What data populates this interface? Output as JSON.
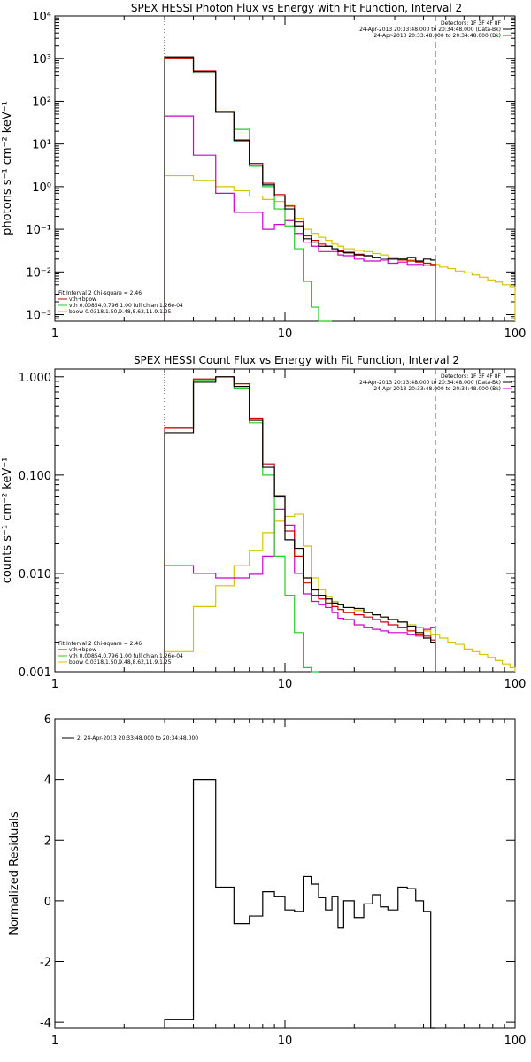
{
  "colors": {
    "data": "#000000",
    "total": "#cc0000",
    "vth": "#22cc22",
    "bpow": "#d4c400",
    "bk": "#cc00cc"
  },
  "chart_data": [
    {
      "type": "line",
      "title": "SPEX HESSI Photon Flux vs Energy with Fit Function, Interval 2",
      "xlabel": "",
      "ylabel": "photons s⁻¹ cm⁻² keV⁻¹",
      "xscale": "log",
      "yscale": "log",
      "xlim": [
        1,
        100
      ],
      "ylim": [
        0.0007,
        10000
      ],
      "xticks": [
        1,
        10,
        100
      ],
      "xtick_labels": [
        "1",
        "10",
        "100"
      ],
      "yticks": [
        0.001,
        0.01,
        0.1,
        1,
        10,
        100,
        1000,
        10000
      ],
      "ytick_labels": [
        "10⁻³",
        "10⁻²",
        "10⁻¹",
        "10⁰",
        "10¹",
        "10²",
        "10³",
        "10⁴"
      ],
      "vlines": [
        3,
        45
      ],
      "legend_top": [
        "Detectors: 1F 3F 4F 8F",
        "24-Apr-2013 20:33:48.000 to 20:34:48.000 (Data-Bk)",
        "24-Apr-2013 20:33:48.000 to 20:34:48.000 (Bk)"
      ],
      "legend_bottom": [
        "Fit Interval 2   Chi-square = 2.46",
        "vth+bpow",
        "vth 0.00854,0.796,1.00   full chian 1.26e-04",
        "bpow 0.0318,1.50,9.48,8.62,11.9,1.25"
      ],
      "bin_edges": [
        3,
        4,
        5,
        6,
        7,
        8,
        9,
        10,
        11,
        12,
        13,
        14,
        15,
        16,
        17,
        18,
        20,
        22,
        24,
        26,
        28,
        31,
        34,
        37,
        40,
        43,
        45
      ],
      "series": [
        {
          "name": "24-Apr-2013 20:33:48.000 to 20:34:48.000 (Data-Bk)",
          "color": "data",
          "values": [
            1100,
            500,
            55,
            12,
            3.2,
            1.1,
            0.6,
            0.3,
            0.12,
            0.06,
            0.05,
            0.04,
            0.04,
            0.035,
            0.03,
            0.028,
            0.025,
            0.024,
            0.022,
            0.021,
            0.02,
            0.02,
            0.022,
            0.018,
            0.02,
            0.019
          ]
        },
        {
          "name": "vth+bpow",
          "color": "total",
          "values": [
            1000,
            520,
            58,
            12.5,
            3.5,
            1.2,
            0.65,
            0.35,
            0.15,
            0.07,
            0.055,
            0.045,
            0.04,
            0.035,
            0.031,
            0.029,
            0.026,
            0.024,
            0.022,
            0.021,
            0.02,
            0.019,
            0.018,
            0.017,
            0.016,
            0.015
          ]
        },
        {
          "name": "vth 0.00854,0.796,1.00   full chian 1.26e-04",
          "color": "vth",
          "values": [
            1100,
            460,
            58,
            22,
            3,
            1.0,
            0.3,
            0.12,
            0.035,
            0.006,
            0.0015,
            0.0006,
            0.0005
          ]
        },
        {
          "name": "24-Apr-2013 20:33:48.000 to 20:34:48.000 (Bk)",
          "color": "bk",
          "values": [
            45,
            5.5,
            0.7,
            0.25,
            0.25,
            0.1,
            0.13,
            0.16,
            0.08,
            0.05,
            0.04,
            0.03,
            0.03,
            0.03,
            0.025,
            0.024,
            0.02,
            0.018,
            0.018,
            0.019,
            0.016,
            0.017,
            0.015,
            0.015,
            0.014,
            0.014
          ]
        },
        {
          "name": "bpow 0.0318,1.50,9.48,8.62,11.9,1.25",
          "color": "bpow",
          "edges": [
            3,
            4,
            5,
            6,
            7,
            8,
            9,
            10,
            11,
            12,
            13,
            14,
            15,
            16,
            17,
            18,
            20,
            22,
            24,
            26,
            28,
            31,
            34,
            37,
            40,
            43,
            47,
            51,
            55,
            60,
            65,
            70,
            76,
            82,
            88,
            95,
            100
          ],
          "values": [
            1.8,
            1.4,
            1.0,
            0.8,
            0.6,
            0.5,
            0.45,
            0.36,
            0.18,
            0.1,
            0.08,
            0.065,
            0.055,
            0.045,
            0.04,
            0.035,
            0.032,
            0.03,
            0.027,
            0.025,
            0.022,
            0.02,
            0.019,
            0.017,
            0.016,
            0.015,
            0.013,
            0.012,
            0.0105,
            0.0095,
            0.0085,
            0.0075,
            0.0065,
            0.0058,
            0.005,
            0.0045
          ]
        }
      ]
    },
    {
      "type": "line",
      "title": "SPEX HESSI Count Flux vs Energy with Fit Function, Interval 2",
      "xlabel": "",
      "ylabel": "counts s⁻¹ cm⁻² keV⁻¹",
      "xscale": "log",
      "yscale": "log",
      "xlim": [
        1,
        100
      ],
      "ylim": [
        0.001,
        1.2
      ],
      "xticks": [
        1,
        10,
        100
      ],
      "xtick_labels": [
        "1",
        "10",
        "100"
      ],
      "yticks": [
        0.001,
        0.01,
        0.1,
        1
      ],
      "ytick_labels": [
        "0.001",
        "0.010",
        "0.100",
        "1.000"
      ],
      "vlines": [
        3,
        45
      ],
      "legend_top": [
        "Detectors: 1F 3F 4F 8F",
        "24-Apr-2013 20:33:48.000 to 20:34:48.000 (Data-Bk)",
        "24-Apr-2013 20:33:48.000 to 20:34:48.000 (Bk)"
      ],
      "legend_bottom": [
        "Fit Interval 2   Chi-square = 2.46",
        "vth+bpow",
        "vth 0.00854,0.796,1.00   full chian 1.26e-04",
        "bpow 0.0318,1.50,9.48,8.62,11.9,1.25"
      ],
      "bin_edges": [
        3,
        4,
        5,
        6,
        7,
        8,
        9,
        10,
        11,
        12,
        13,
        14,
        15,
        16,
        17,
        18,
        20,
        22,
        24,
        26,
        28,
        31,
        34,
        37,
        40,
        43,
        45
      ],
      "series": [
        {
          "name": "24-Apr-2013 20:33:48.000 to 20:34:48.000 (Data-Bk)",
          "color": "data",
          "values": [
            0.27,
            0.88,
            1.0,
            0.8,
            0.36,
            0.12,
            0.06,
            0.022,
            0.018,
            0.009,
            0.0068,
            0.006,
            0.0055,
            0.005,
            0.0048,
            0.0045,
            0.0044,
            0.004,
            0.0038,
            0.0036,
            0.0034,
            0.0032,
            0.0029,
            0.0025,
            0.0022,
            0.002
          ]
        },
        {
          "name": "vth+bpow",
          "color": "total",
          "values": [
            0.3,
            0.95,
            1.0,
            0.85,
            0.38,
            0.13,
            0.062,
            0.027,
            0.015,
            0.008,
            0.006,
            0.0055,
            0.005,
            0.0046,
            0.0043,
            0.004,
            0.0038,
            0.0036,
            0.0034,
            0.0032,
            0.003,
            0.0028,
            0.0026,
            0.0024,
            0.0023,
            0.0021
          ]
        },
        {
          "name": "vth 0.00854,0.796,1.00   full chian 1.26e-04",
          "color": "vth",
          "values": [
            0.3,
            0.92,
            1.0,
            0.77,
            0.34,
            0.1,
            0.015,
            0.006,
            0.0025,
            0.0011,
            0.0006
          ]
        },
        {
          "name": "24-Apr-2013 20:33:48.000 to 20:34:48.000 (Bk)",
          "color": "bk",
          "values": [
            0.012,
            0.01,
            0.009,
            0.009,
            0.0098,
            0.015,
            0.045,
            0.031,
            0.01,
            0.0062,
            0.0052,
            0.0048,
            0.0045,
            0.004,
            0.0035,
            0.0034,
            0.003,
            0.0028,
            0.0027,
            0.0026,
            0.0025,
            0.0025,
            0.0024,
            0.0023,
            0.0027,
            0.0028
          ]
        },
        {
          "name": "bpow 0.0318,1.50,9.48,8.62,11.9,1.25",
          "color": "bpow",
          "edges": [
            3,
            4,
            5,
            6,
            7,
            8,
            9,
            10,
            11,
            12,
            13,
            14,
            15,
            16,
            17,
            18,
            20,
            22,
            24,
            26,
            28,
            31,
            34,
            37,
            40,
            43,
            47,
            51,
            55,
            60,
            65,
            70,
            76,
            82,
            88,
            95,
            100
          ],
          "values": [
            0.0016,
            0.0046,
            0.0075,
            0.012,
            0.017,
            0.026,
            0.034,
            0.038,
            0.04,
            0.019,
            0.009,
            0.0068,
            0.0058,
            0.0052,
            0.0048,
            0.0045,
            0.0042,
            0.004,
            0.0038,
            0.0036,
            0.0034,
            0.0032,
            0.003,
            0.0028,
            0.0026,
            0.0024,
            0.0022,
            0.002,
            0.0019,
            0.0017,
            0.0016,
            0.0015,
            0.0014,
            0.0013,
            0.0012,
            0.0011
          ]
        }
      ]
    },
    {
      "type": "line",
      "title": "",
      "xlabel": "",
      "ylabel": "Normalized Residuals",
      "xscale": "log",
      "yscale": "linear",
      "xlim": [
        1,
        100
      ],
      "ylim": [
        -4.2,
        6
      ],
      "xticks": [
        1,
        10,
        100
      ],
      "xtick_labels": [
        "1",
        "10",
        "100"
      ],
      "yticks": [
        -4,
        -2,
        0,
        2,
        4,
        6
      ],
      "ytick_labels": [
        "-4",
        "-2",
        "0",
        "2",
        "4",
        "6"
      ],
      "legend_top": [
        "2, 24-Apr-2013 20:33:48.000 to 20:34:48.000"
      ],
      "series": [
        {
          "name": "2, 24-Apr-2013 20:33:48.000 to 20:34:48.000",
          "color": "data",
          "edges": [
            3,
            4,
            5,
            6,
            7,
            8,
            9,
            10,
            11,
            12,
            13,
            14,
            15,
            16,
            17,
            18,
            20,
            22,
            24,
            26,
            28,
            31,
            34,
            37,
            40,
            43,
            45
          ],
          "values": [
            -3.9,
            4.0,
            0.45,
            -0.75,
            -0.5,
            0.3,
            0.15,
            -0.3,
            -0.35,
            0.8,
            0.55,
            0.1,
            -0.3,
            0.15,
            -0.9,
            0.0,
            -0.55,
            -0.1,
            0.2,
            -0.2,
            -0.3,
            0.45,
            0.4,
            0.0,
            -0.35,
            -4.2
          ]
        }
      ]
    }
  ]
}
